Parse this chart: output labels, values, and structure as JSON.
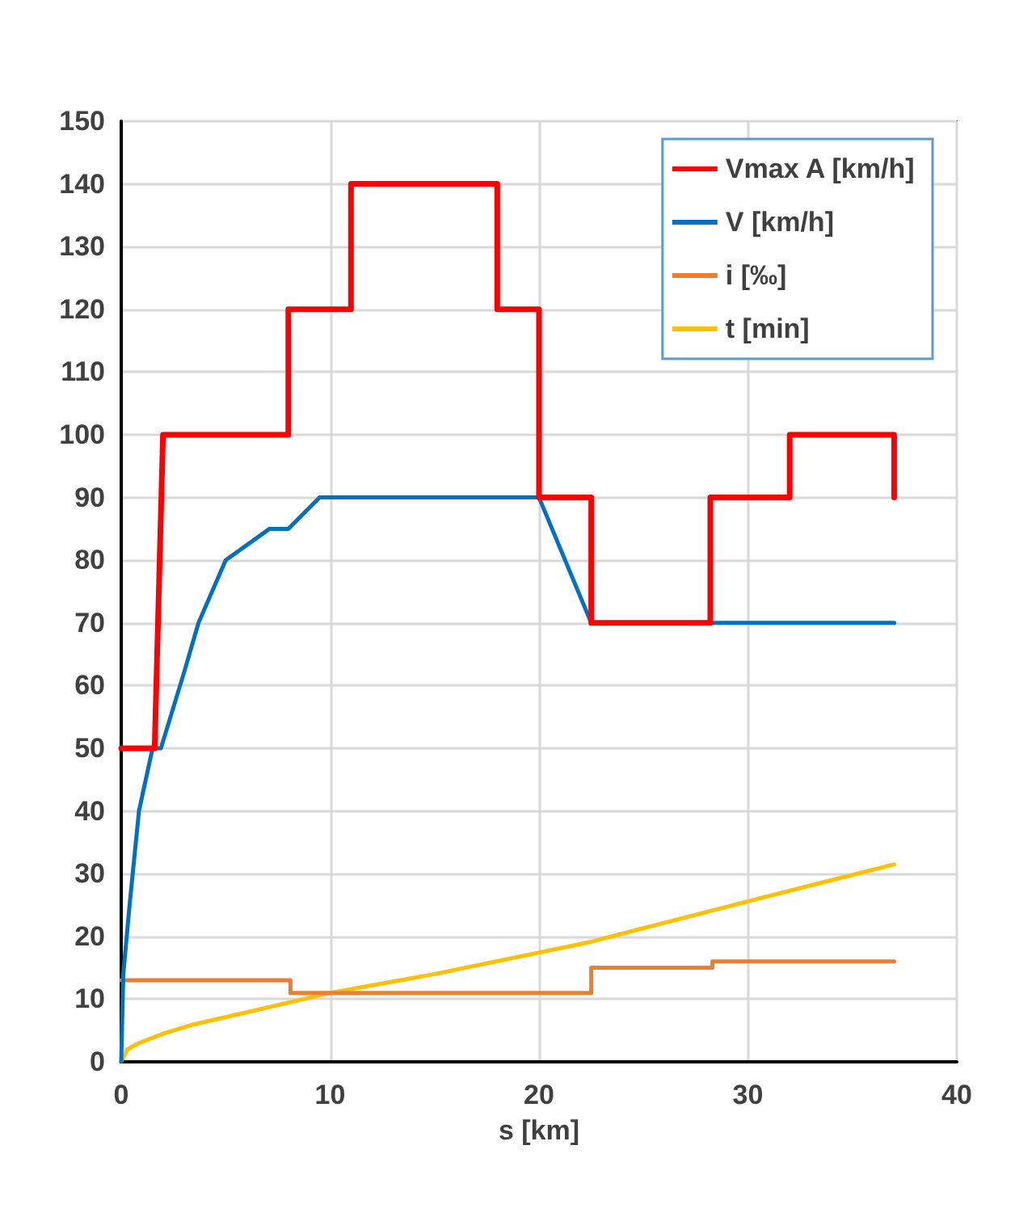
{
  "chart_data": {
    "type": "line",
    "xlabel": "s [km]",
    "xlim": [
      0,
      40
    ],
    "xticks": [
      0,
      10,
      20,
      30,
      40
    ],
    "ylim": [
      0,
      150
    ],
    "yticks": [
      0,
      10,
      20,
      30,
      40,
      50,
      60,
      70,
      80,
      90,
      100,
      110,
      120,
      130,
      140,
      150
    ],
    "grid": true,
    "legend": "top right",
    "marker": "none",
    "line_style": "solid",
    "series": [
      {
        "name": "Vmax A [km/h]",
        "color": "#ff0000",
        "x": [
          0,
          1.6,
          2,
          8,
          8,
          11,
          11,
          18,
          18,
          20,
          20,
          22.5,
          22.5,
          28.2,
          28.2,
          32,
          32,
          37,
          37
        ],
        "values": [
          50,
          50,
          100,
          100,
          120,
          120,
          140,
          140,
          120,
          120,
          90,
          90,
          70,
          70,
          90,
          90,
          100,
          100,
          90
        ]
      },
      {
        "name": "V [km/h]",
        "color": "#0070c0",
        "x": [
          0,
          0.1,
          0.4,
          0.85,
          1.5,
          1.9,
          3,
          3.7,
          5,
          7.1,
          8,
          9.5,
          20,
          22.5,
          37
        ],
        "values": [
          0,
          14,
          25,
          40,
          50,
          50,
          62,
          70,
          80,
          85,
          85,
          90,
          90,
          70,
          70
        ]
      },
      {
        "name": "i [‰]",
        "color": "#ed7d31",
        "x": [
          0,
          8.1,
          8.1,
          22.5,
          22.5,
          28.3,
          28.3,
          37
        ],
        "values": [
          13,
          13,
          11,
          11,
          15,
          15,
          16,
          16
        ]
      },
      {
        "name": "t [min]",
        "color": "#ffc000",
        "x": [
          0,
          0.3,
          0.85,
          2,
          3.5,
          5.5,
          10,
          15,
          22.3,
          30,
          37
        ],
        "values": [
          0,
          2,
          3,
          4.5,
          6,
          7.5,
          11,
          14,
          19,
          25.6,
          31.5
        ]
      }
    ]
  }
}
